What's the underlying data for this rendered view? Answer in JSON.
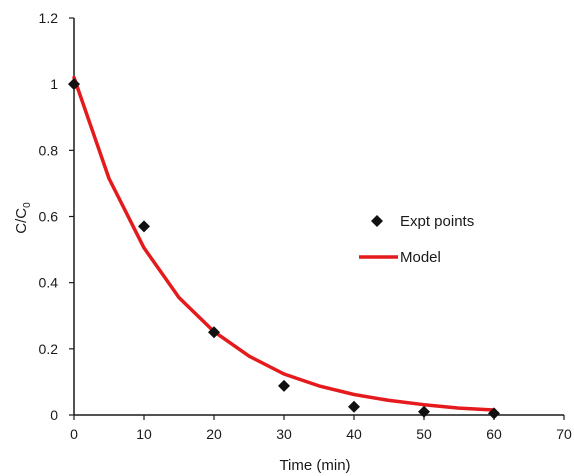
{
  "chart_data": {
    "type": "scatter",
    "xlabel": "Time (min)",
    "ylabel": {
      "main": "C/C",
      "sub": "0"
    },
    "xlim": [
      0,
      70
    ],
    "ylim": [
      0,
      1.2
    ],
    "x_ticks": [
      "0",
      "10",
      "20",
      "30",
      "40",
      "50",
      "60",
      "70"
    ],
    "y_ticks": [
      "0",
      "0.2",
      "0.4",
      "0.6",
      "0.8",
      "1",
      "1.2"
    ],
    "grid": false,
    "legend_position": "center-right",
    "series": [
      {
        "name": "Expt points",
        "kind": "scatter",
        "marker": "diamond",
        "color": "#111111",
        "x": [
          0,
          10,
          20,
          30,
          40,
          50,
          60
        ],
        "y": [
          1.0,
          0.57,
          0.25,
          0.088,
          0.025,
          0.01,
          0.005
        ]
      },
      {
        "name": "Model",
        "kind": "line",
        "color": "#e41a1c",
        "x": [
          0,
          5,
          10,
          15,
          20,
          25,
          30,
          35,
          40,
          45,
          50,
          55,
          60
        ],
        "y": [
          1.02,
          0.715,
          0.505,
          0.355,
          0.252,
          0.178,
          0.124,
          0.088,
          0.062,
          0.044,
          0.031,
          0.021,
          0.015
        ]
      }
    ]
  }
}
